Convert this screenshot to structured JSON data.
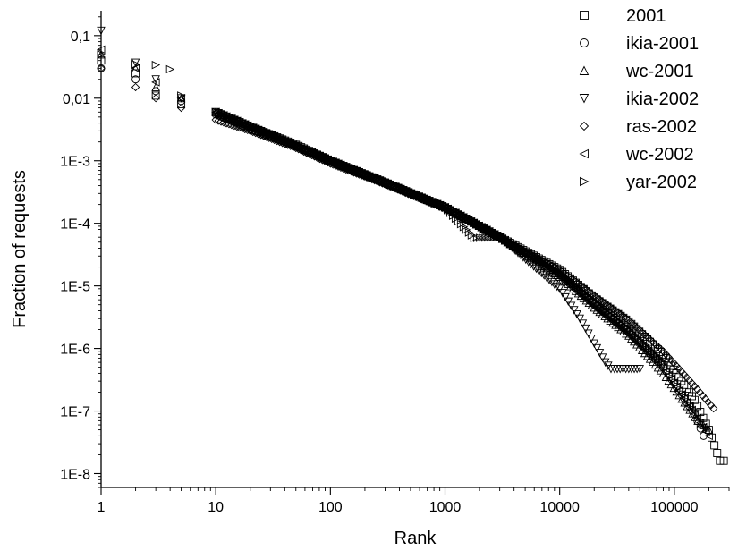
{
  "chart_data": {
    "type": "scatter",
    "xlabel": "Rank",
    "ylabel": "Fraction of requests",
    "xscale": "log",
    "yscale": "log",
    "xlim": [
      1,
      300000
    ],
    "ylim": [
      6e-09,
      0.25
    ],
    "grid": false,
    "legend_position": "top-right",
    "x_tick_labels": [
      "1",
      "10",
      "100",
      "1000",
      "10000",
      "100000"
    ],
    "x_tick_values": [
      1,
      10,
      100,
      1000,
      10000,
      100000
    ],
    "y_tick_labels": [
      "0,1",
      "0,01",
      "1E-3",
      "1E-4",
      "1E-5",
      "1E-6",
      "1E-7",
      "1E-8"
    ],
    "y_tick_values": [
      0.1,
      0.01,
      0.001,
      0.0001,
      1e-05,
      1e-06,
      1e-07,
      1e-08
    ],
    "series": [
      {
        "name": "2001",
        "marker": "square",
        "x": [
          1,
          2,
          3,
          5,
          10,
          20,
          50,
          100,
          300,
          1000,
          3000,
          10000,
          20000,
          40000,
          80000,
          150000,
          200000,
          250000,
          270000
        ],
        "y": [
          0.04,
          0.025,
          0.011,
          0.008,
          0.006,
          0.0035,
          0.0018,
          0.001,
          0.00045,
          0.00018,
          6e-05,
          1.8e-05,
          6.5e-06,
          2.7e-06,
          8e-07,
          1.5e-07,
          5e-08,
          1.6e-08,
          1.6e-08
        ]
      },
      {
        "name": "ikia-2001",
        "marker": "circle",
        "x": [
          1,
          2,
          3,
          5,
          10,
          20,
          50,
          100,
          300,
          1000,
          3000,
          10000,
          20000,
          40000,
          80000,
          150000,
          180000
        ],
        "y": [
          0.03,
          0.02,
          0.013,
          0.009,
          0.0055,
          0.0032,
          0.0017,
          0.001,
          0.00044,
          0.00018,
          6e-05,
          1.5e-05,
          5e-06,
          1.8e-06,
          5e-07,
          9e-08,
          4e-08
        ]
      },
      {
        "name": "wc-2001",
        "marker": "triangle-up",
        "x": [
          1,
          2,
          3,
          5,
          10,
          20,
          50,
          100,
          300,
          1000,
          3000,
          10000,
          20000,
          40000,
          80000,
          160000,
          200000
        ],
        "y": [
          0.05,
          0.03,
          0.015,
          0.01,
          0.006,
          0.0035,
          0.0018,
          0.001,
          0.00045,
          0.00018,
          6e-05,
          1.4e-05,
          4.5e-06,
          1.6e-06,
          4e-07,
          7e-08,
          5e-08
        ]
      },
      {
        "name": "ikia-2002",
        "marker": "triangle-down",
        "x": [
          1,
          2,
          3,
          5,
          10,
          20,
          50,
          100,
          300,
          1000,
          3000,
          10000,
          15000,
          20000,
          25000,
          28000,
          30000,
          40000,
          50000
        ],
        "y": [
          0.12,
          0.037,
          0.02,
          0.01,
          0.006,
          0.0035,
          0.0017,
          0.001,
          0.00044,
          0.00018,
          6e-05,
          9e-06,
          3e-06,
          1.2e-06,
          6e-07,
          4.7e-07,
          4.7e-07,
          4.7e-07,
          4.7e-07
        ]
      },
      {
        "name": "ras-2002",
        "marker": "diamond",
        "x": [
          1,
          2,
          3,
          5,
          10,
          20,
          50,
          100,
          300,
          1000,
          3000,
          10000,
          20000,
          40000,
          80000,
          150000,
          220000
        ],
        "y": [
          0.03,
          0.015,
          0.01,
          0.007,
          0.0045,
          0.003,
          0.0016,
          0.0009,
          0.00042,
          0.00017,
          6e-05,
          1.8e-05,
          7e-06,
          2.8e-06,
          9e-07,
          2.5e-07,
          1.1e-07
        ]
      },
      {
        "name": "wc-2002",
        "marker": "triangle-left",
        "x": [
          1,
          2,
          3,
          5,
          10,
          20,
          50,
          100,
          300,
          1000,
          3000,
          10000,
          20000,
          40000,
          80000,
          150000,
          200000
        ],
        "y": [
          0.06,
          0.03,
          0.018,
          0.01,
          0.006,
          0.0035,
          0.0017,
          0.001,
          0.00044,
          0.00018,
          6e-05,
          1.5e-05,
          5e-06,
          1.8e-06,
          5e-07,
          9e-08,
          4e-08
        ]
      },
      {
        "name": "yar-2002",
        "marker": "triangle-right",
        "x": [
          1,
          2,
          3,
          4,
          5,
          10,
          20,
          50,
          100,
          300,
          1000,
          1800,
          3000,
          10000,
          20000,
          40000,
          80000
        ],
        "y": [
          0.05,
          0.035,
          0.034,
          0.029,
          0.011,
          0.006,
          0.0035,
          0.0018,
          0.001,
          0.00045,
          0.00018,
          5.8e-05,
          6e-05,
          1.6e-05,
          5.5e-06,
          2e-06,
          6e-07
        ]
      }
    ]
  }
}
